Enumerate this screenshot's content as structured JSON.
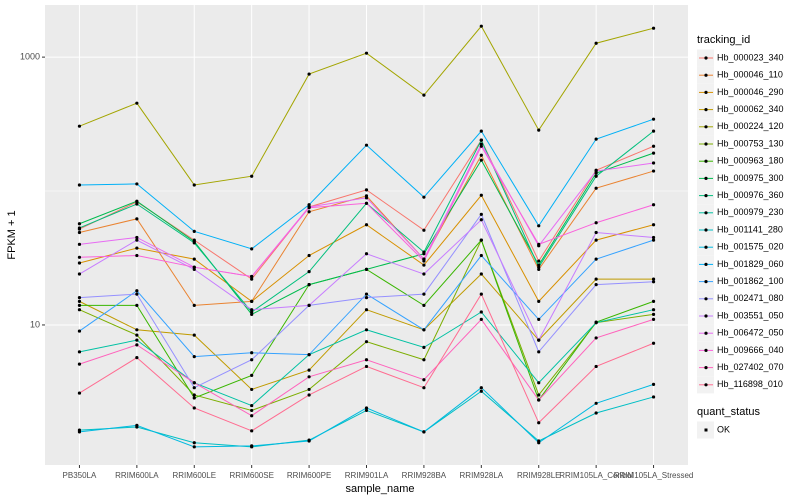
{
  "chart_data": {
    "type": "line",
    "log_y": true,
    "grid": true,
    "x_label": "sample_name",
    "y_label": "FPKM + 1",
    "legend_title": "tracking_id",
    "legend_position": "right",
    "point_legend_title": "quant_status",
    "point_legend_labels": [
      "OK"
    ],
    "point_color": "#000000",
    "categories": [
      "PB350LA",
      "RRIM600LA",
      "RRIM600LE",
      "RRIM600SE",
      "RRIM600PE",
      "RRIM901LA",
      "RRIM928BA",
      "RRIM928LA",
      "RRIM928LE",
      "RRIM105LA_Control",
      "RRIM105LA_Stressed"
    ],
    "ylim": [
      0.9,
      2450
    ],
    "yticks": [
      10,
      1000
    ],
    "series": [
      {
        "name": "Hb_000023_340",
        "color": "#F8766D",
        "values": [
          52,
          83,
          43,
          22,
          76,
          102,
          51,
          240,
          30,
          143,
          216
        ]
      },
      {
        "name": "Hb_000046_110",
        "color": "#EA8331",
        "values": [
          49,
          62,
          14,
          15,
          70,
          92,
          31,
          185,
          26,
          105,
          141
        ]
      },
      {
        "name": "Hb_000046_290",
        "color": "#D89000",
        "values": [
          29,
          37.5,
          31,
          15,
          33,
          56,
          28,
          93,
          15,
          43,
          56
        ]
      },
      {
        "name": "Hb_000062_340",
        "color": "#C09B00",
        "values": [
          15,
          9.2,
          8.4,
          3.3,
          4.6,
          13,
          9.2,
          24,
          7.7,
          22,
          22
        ]
      },
      {
        "name": "Hb_000224_120",
        "color": "#A3A500",
        "values": [
          305,
          453,
          111,
          129,
          747,
          1070,
          520,
          1702,
          285,
          1270,
          1644
        ]
      },
      {
        "name": "Hb_000753_130",
        "color": "#7CAE00",
        "values": [
          13,
          8.4,
          3.0,
          2.3,
          3.3,
          7.5,
          5.5,
          43,
          3.0,
          10.4,
          12
        ]
      },
      {
        "name": "Hb_000963_180",
        "color": "#39B600",
        "values": [
          14,
          14,
          2.85,
          4.2,
          20,
          26,
          14,
          43,
          2.75,
          10.5,
          15
        ]
      },
      {
        "name": "Hb_000975_300",
        "color": "#00BB4E",
        "values": [
          57,
          84,
          42,
          12,
          20,
          26,
          34,
          170,
          28,
          136,
          192
        ]
      },
      {
        "name": "Hb_000976_360",
        "color": "#00BF7D",
        "values": [
          53,
          80,
          41,
          12.5,
          25,
          81,
          35,
          240,
          27,
          129,
          280
        ]
      },
      {
        "name": "Hb_000979_230",
        "color": "#00C1A3",
        "values": [
          6.3,
          7.7,
          3.7,
          2.5,
          6.0,
          9.2,
          6.8,
          12.5,
          3.7,
          10.4,
          13
        ]
      },
      {
        "name": "Hb_001141_280",
        "color": "#00BFC4",
        "values": [
          1.64,
          1.73,
          1.32,
          1.23,
          1.38,
          2.3,
          1.59,
          3.2,
          1.36,
          2.2,
          2.9
        ]
      },
      {
        "name": "Hb_001575_020",
        "color": "#00BAE0",
        "values": [
          1.59,
          1.78,
          1.23,
          1.25,
          1.36,
          2.4,
          1.59,
          3.4,
          1.32,
          2.6,
          3.6
        ]
      },
      {
        "name": "Hb_001829_060",
        "color": "#00B0F6",
        "values": [
          111,
          113,
          50,
          37,
          79,
          220,
          90,
          280,
          55,
          244,
          344
        ]
      },
      {
        "name": "Hb_001862_100",
        "color": "#35A2FF",
        "values": [
          9.0,
          18,
          5.8,
          6.2,
          6.0,
          17,
          9.2,
          33,
          11,
          31,
          43
        ]
      },
      {
        "name": "Hb_002471_080",
        "color": "#9590FF",
        "values": [
          16,
          17,
          3.4,
          5.5,
          14,
          16,
          17,
          67,
          6.3,
          20,
          21
        ]
      },
      {
        "name": "Hb_003551_050",
        "color": "#C77CFF",
        "values": [
          24,
          43,
          26,
          13,
          14,
          34,
          24,
          61,
          7.7,
          49,
          45
        ]
      },
      {
        "name": "Hb_006472_050",
        "color": "#E76BF3",
        "values": [
          40,
          45,
          27,
          23,
          76,
          89,
          31,
          224,
          39,
          141,
          162
        ]
      },
      {
        "name": "Hb_009666_040",
        "color": "#FA62DB",
        "values": [
          32,
          33,
          27,
          23,
          75,
          81,
          30,
          216,
          40,
          58,
          79
        ]
      },
      {
        "name": "Hb_027402_070",
        "color": "#FF62BC",
        "values": [
          5.1,
          7.1,
          3.7,
          2.1,
          4.1,
          5.5,
          3.9,
          11,
          2.75,
          8.0,
          11
        ]
      },
      {
        "name": "Hb_116898_010",
        "color": "#FF6C91",
        "values": [
          3.1,
          5.7,
          2.4,
          1.62,
          3.0,
          4.9,
          3.4,
          17,
          1.86,
          4.9,
          7.3
        ]
      }
    ]
  }
}
